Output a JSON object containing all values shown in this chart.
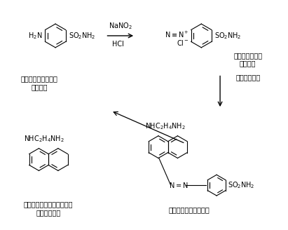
{
  "bg_color": "#ffffff",
  "text_color": "#000000",
  "label_sulfanilamide": "スルファニルアミド",
  "label_sulfanilamide_color": "（無色）",
  "label_diazonium": "ジアゾニウム塩",
  "label_diazonium_color": "（無色）",
  "label_coupling": "カップリング",
  "label_naphthyl": "ナフチルエチレンジアミン",
  "label_naphthyl_color": "（淡い黄色）",
  "label_azo": "アゾ色素（ピンク色）"
}
